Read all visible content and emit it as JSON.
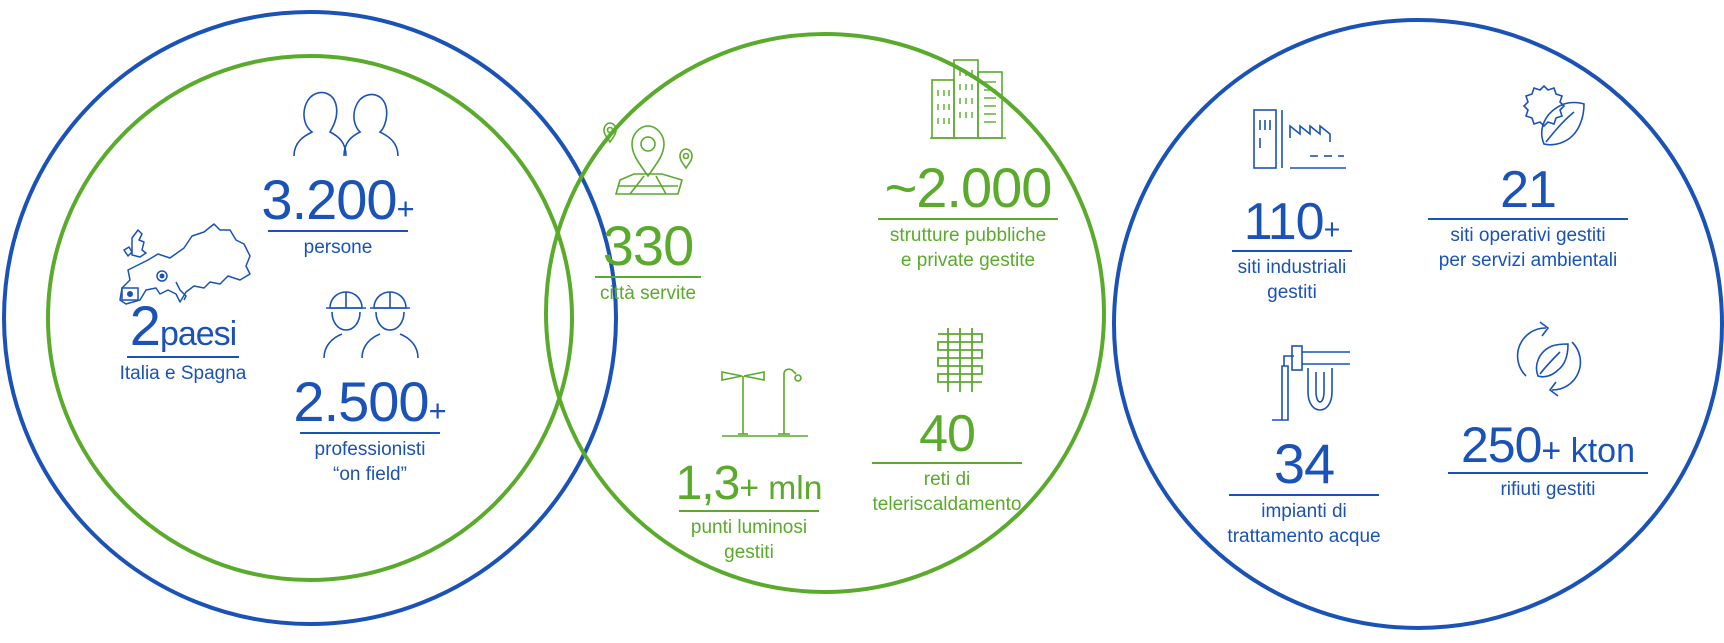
{
  "colors": {
    "blue": "#1a52b8",
    "green": "#5aaa2c"
  },
  "left": {
    "countries": {
      "number": "2",
      "suffix": "paesi",
      "label": "Italia e Spagna",
      "icon": "europe-map-icon"
    },
    "people": {
      "number": "3.200",
      "suffix": "+",
      "label": "persone",
      "icon": "people-icon"
    },
    "professionals": {
      "number": "2.500",
      "suffix": "+",
      "label_line1": "professionisti",
      "label_line2": "“on field”",
      "icon": "hard-hat-workers-icon"
    }
  },
  "middle": {
    "cities": {
      "number": "330",
      "label": "città servite",
      "icon": "map-pin-icon"
    },
    "structures": {
      "number": "~2.000",
      "label_line1": "strutture pubbliche",
      "label_line2": "e private gestite",
      "icon": "buildings-icon"
    },
    "lights": {
      "number": "1,3",
      "suffix": "+ mln",
      "label_line1": "punti luminosi",
      "label_line2": "gestiti",
      "icon": "street-lamp-icon"
    },
    "networks": {
      "number": "40",
      "label_line1": "reti di",
      "label_line2": "teleriscaldamento",
      "icon": "heating-pipes-icon"
    }
  },
  "right": {
    "industrial": {
      "number": "110",
      "suffix": "+",
      "label_line1": "siti industriali",
      "label_line2": "gestiti",
      "icon": "factory-icon"
    },
    "operational": {
      "number": "21",
      "label_line1": "siti operativi gestiti",
      "label_line2": "per servizi ambientali",
      "icon": "gear-leaf-icon"
    },
    "water": {
      "number": "34",
      "label_line1": "impianti di",
      "label_line2": "trattamento acque",
      "icon": "water-pipe-icon"
    },
    "waste": {
      "number": "250",
      "suffix": "+ kton",
      "label": "rifiuti gestiti",
      "icon": "recycle-leaf-icon"
    }
  }
}
